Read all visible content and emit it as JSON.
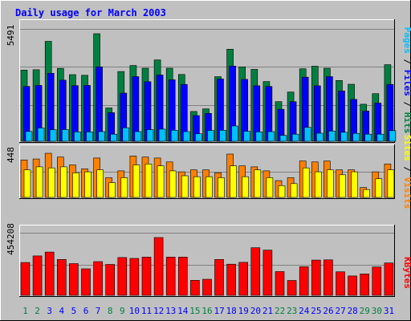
{
  "chart_data": {
    "type": "bar",
    "title": "Daily usage for March 2003",
    "categories": [
      "1",
      "2",
      "3",
      "4",
      "5",
      "6",
      "7",
      "8",
      "9",
      "10",
      "11",
      "12",
      "13",
      "14",
      "15",
      "16",
      "17",
      "18",
      "19",
      "20",
      "21",
      "22",
      "23",
      "24",
      "25",
      "26",
      "27",
      "28",
      "29",
      "30",
      "31"
    ],
    "weekend_days": [
      "1",
      "2",
      "8",
      "9",
      "15",
      "16",
      "22",
      "23",
      "29",
      "30"
    ],
    "panels": [
      {
        "id": "hits",
        "ymax_label": "5491",
        "ymax": 5491,
        "axis_labels": [
          "Pages",
          "Files",
          "Hits"
        ],
        "series": [
          {
            "name": "Hits",
            "color": "#008040",
            "values": [
              3630,
              3650,
              5100,
              3720,
              3400,
              3370,
              5491,
              1700,
              3560,
              3870,
              3730,
              4150,
              3730,
              3410,
              1520,
              1650,
              3300,
              4700,
              3800,
              3670,
              3050,
              2020,
              2510,
              3700,
              3830,
              3730,
              3100,
              2910,
              1890,
              2430,
              3910
            ]
          },
          {
            "name": "Files",
            "color": "#0000ff",
            "values": [
              2800,
              2850,
              3470,
              3120,
              2840,
              2850,
              3800,
              1460,
              2460,
              3300,
              3040,
              3380,
              3140,
              2900,
              1310,
              1420,
              3180,
              3840,
              3160,
              2830,
              2800,
              1630,
              2020,
              3270,
              2830,
              3300,
              2570,
              2140,
              1540,
              1950,
              2900
            ]
          },
          {
            "name": "Pages",
            "color": "#00c0ff",
            "values": [
              500,
              680,
              590,
              600,
              480,
              480,
              490,
              360,
              690,
              490,
              590,
              620,
              560,
              490,
              380,
              550,
              560,
              780,
              510,
              480,
              490,
              300,
              360,
              710,
              410,
              520,
              460,
              400,
              360,
              360,
              540
            ]
          }
        ]
      },
      {
        "id": "visits",
        "ymax_label": "448",
        "ymax": 448,
        "axis_labels": [
          "Sites",
          "Visits"
        ],
        "series": [
          {
            "name": "Visits",
            "color": "#ff8000",
            "values": [
              380,
              390,
              448,
              410,
              330,
              290,
              400,
              200,
              270,
              420,
              410,
              400,
              360,
              260,
              280,
              280,
              250,
              440,
              320,
              310,
              270,
              170,
              200,
              370,
              360,
              370,
              280,
              280,
              100,
              260,
              340
            ]
          },
          {
            "name": "Sites",
            "color": "#ffff00",
            "values": [
              280,
              310,
              300,
              310,
              250,
              260,
              280,
              150,
              200,
              330,
              340,
              320,
              270,
              220,
              210,
              210,
              200,
              320,
              210,
              280,
              200,
              120,
              140,
              300,
              260,
              280,
              230,
              260,
              80,
              190,
              280
            ]
          }
        ]
      },
      {
        "id": "kbytes",
        "ymax_label": "454208",
        "ymax": 454208,
        "axis_labels": [
          "KBytes"
        ],
        "series": [
          {
            "name": "KBytes",
            "color": "#ff0000",
            "values": [
              258000,
              310000,
              340000,
              282000,
              249000,
              208000,
              265000,
              243000,
              297000,
              290000,
              300000,
              454208,
              300000,
              300000,
              118000,
              126000,
              282000,
              245000,
              259000,
              374000,
              355000,
              187000,
              117000,
              225000,
              277000,
              279000,
              185000,
              152000,
              168000,
              223000,
              254000
            ]
          }
        ]
      }
    ],
    "grid": true,
    "colors": {
      "background": "#c0c0c0",
      "frame": "#ffffff",
      "title": "#0000ff",
      "weekday_label": "#0000ff",
      "weekend_label": "#008040",
      "axis_text": "#000000",
      "gridline": "#808080",
      "label_separator": "#000000"
    }
  }
}
